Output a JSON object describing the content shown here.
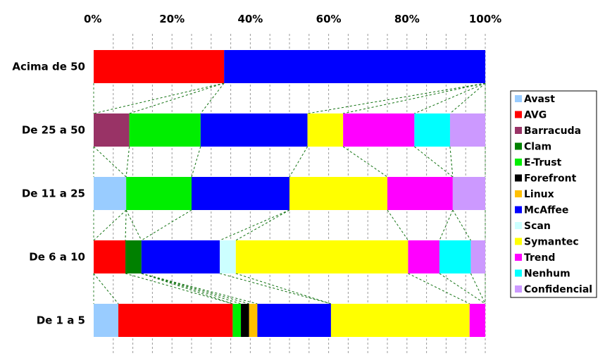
{
  "chart_data": {
    "type": "bar",
    "orientation": "horizontal",
    "stacked": "percent",
    "x_ticks": [
      "0%",
      "20%",
      "40%",
      "60%",
      "80%",
      "100%"
    ],
    "xlim": [
      0,
      100
    ],
    "grid": true,
    "legend_position": "right",
    "categories": [
      "Acima de 50",
      "De 25 a 50",
      "De 11 a 25",
      "De 6 a 10",
      "De 1 a 5"
    ],
    "series": [
      {
        "name": "Avast",
        "color": "#99ccff",
        "values": [
          0,
          0,
          8.3,
          0,
          6.3
        ]
      },
      {
        "name": "AVG",
        "color": "#ff0000",
        "values": [
          33.3,
          0,
          0,
          8.1,
          29.2
        ]
      },
      {
        "name": "Barracuda",
        "color": "#993366",
        "values": [
          0,
          9.1,
          0,
          0,
          0
        ]
      },
      {
        "name": "Clam",
        "color": "#008000",
        "values": [
          0,
          0,
          0,
          4.1,
          0
        ]
      },
      {
        "name": "E-Trust",
        "color": "#00ee00",
        "values": [
          0,
          18.2,
          16.7,
          0,
          2.1
        ]
      },
      {
        "name": "Forefront",
        "color": "#000000",
        "values": [
          0,
          0,
          0,
          0,
          2.1
        ]
      },
      {
        "name": "Linux",
        "color": "#ffc000",
        "values": [
          0,
          0,
          0,
          0,
          2.1
        ]
      },
      {
        "name": "McAffee",
        "color": "#0000ff",
        "values": [
          66.7,
          27.3,
          25.0,
          20.0,
          18.8
        ]
      },
      {
        "name": "Scan",
        "color": "#ccffff",
        "values": [
          0,
          0,
          0,
          4.1,
          0
        ]
      },
      {
        "name": "Symantec",
        "color": "#ffff00",
        "values": [
          0,
          9.1,
          25.0,
          44.0,
          35.4
        ]
      },
      {
        "name": "Trend",
        "color": "#ff00ff",
        "values": [
          0,
          18.2,
          16.7,
          8.0,
          4.0
        ]
      },
      {
        "name": "Nenhum",
        "color": "#00ffff",
        "values": [
          0,
          9.1,
          0,
          8.0,
          0
        ]
      },
      {
        "name": "Confidencial",
        "color": "#cc99ff",
        "values": [
          0,
          9.0,
          8.3,
          3.7,
          0
        ]
      }
    ]
  }
}
